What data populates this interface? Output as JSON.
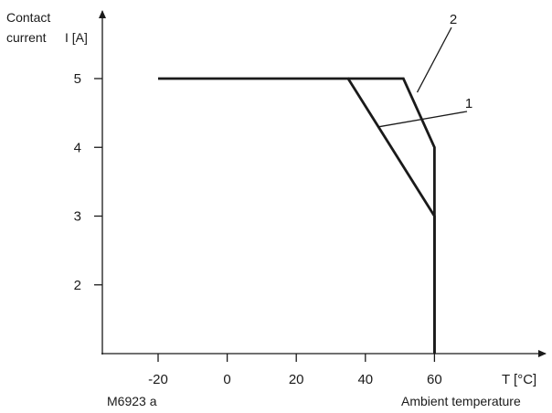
{
  "chart_data": {
    "type": "line",
    "ylabel_word": [
      "Contact",
      "current"
    ],
    "ylabel_symbol": "I [A]",
    "xlabel_symbol": "T [°C]",
    "xlabel_word": "Ambient temperature",
    "figure_code": "M6923  a",
    "xlim": [
      -35,
      75
    ],
    "ylim": [
      1,
      6
    ],
    "x_ticks": [
      -20,
      0,
      20,
      40,
      60
    ],
    "y_ticks": [
      2,
      3,
      4,
      5
    ],
    "series": [
      {
        "name": "1",
        "points": [
          [
            -20,
            5
          ],
          [
            35,
            5
          ],
          [
            60,
            3
          ],
          [
            60,
            1
          ]
        ]
      },
      {
        "name": "2",
        "points": [
          [
            35,
            5
          ],
          [
            51,
            5
          ],
          [
            60,
            4
          ],
          [
            60,
            1
          ]
        ]
      }
    ],
    "curve_labels": [
      {
        "text": "1",
        "anchor": [
          44,
          4.3
        ]
      },
      {
        "text": "2",
        "anchor": [
          55,
          4.8
        ]
      }
    ],
    "grid": false,
    "legend": "none"
  }
}
